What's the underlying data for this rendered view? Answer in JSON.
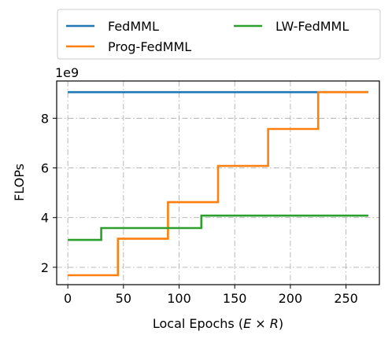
{
  "chart_data": {
    "type": "line",
    "title": "",
    "xlabel_prefix": "Local Epochs (",
    "xlabel_math": "E × R",
    "xlabel_suffix": ")",
    "ylabel": "FLOPs",
    "y_multiplier_label": "1e9",
    "xlim": [
      -10,
      280
    ],
    "ylim": [
      1.3,
      9.5
    ],
    "x_ticks": [
      0,
      50,
      100,
      150,
      200,
      250
    ],
    "y_ticks": [
      2,
      4,
      6,
      8
    ],
    "grid": true,
    "grid_style": "dashdot",
    "legend_position": "top (outside, 2 columns)",
    "series": [
      {
        "name": "FedMML",
        "color": "#1f77b4",
        "x": [
          0,
          270
        ],
        "y": [
          9.05,
          9.05
        ]
      },
      {
        "name": "Prog-FedMML",
        "color": "#ff7f0e",
        "x": [
          0,
          45,
          45,
          90,
          90,
          135,
          135,
          180,
          180,
          225,
          225,
          270
        ],
        "y": [
          1.68,
          1.68,
          3.15,
          3.15,
          4.62,
          4.62,
          6.08,
          6.08,
          7.57,
          7.57,
          9.05,
          9.05
        ]
      },
      {
        "name": "LW-FedMML",
        "color": "#2ca02c",
        "x": [
          0,
          30,
          30,
          120,
          120,
          270
        ],
        "y": [
          3.1,
          3.1,
          3.58,
          3.58,
          4.08,
          4.08
        ]
      }
    ]
  }
}
